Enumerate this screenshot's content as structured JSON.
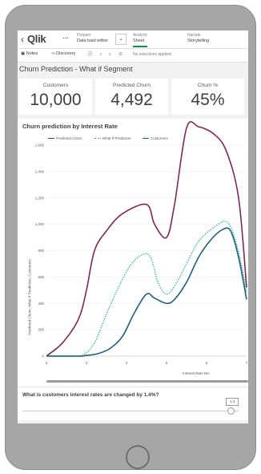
{
  "app": {
    "back_icon": "chevron-left-icon",
    "logo_text": "Qlik",
    "more_label": "···",
    "nav": [
      {
        "top": "Prepare",
        "bottom": "Data load editor"
      },
      {
        "top": "Analyze",
        "bottom": "Sheet"
      },
      {
        "top": "Narrate",
        "bottom": "Storytelling"
      }
    ],
    "accent": "#009845"
  },
  "toolbar": {
    "notes_label": "Notes",
    "discovery_label": "Discovery",
    "selections_label": "No selections applied"
  },
  "sheet_title": "Churn Prediction - What if Segment",
  "kpis": [
    {
      "label": "Customers",
      "value": "10,000"
    },
    {
      "label": "Predicted Churn",
      "value": "4,492"
    },
    {
      "label": "Churn %",
      "value": "45%"
    }
  ],
  "chart_panel_title": "Churn prediction by Interest Rate",
  "chart_data": {
    "type": "line",
    "title": "Churn prediction by Interest Rate",
    "xlabel": "Interest Rate Bin",
    "ylabel": "Predicted Churn, What If Prediction, Customers",
    "xlim": [
      2,
      7
    ],
    "ylim": [
      0,
      1600
    ],
    "xticks": [
      "2",
      "3",
      "4",
      "5",
      "6",
      "7"
    ],
    "yticks": [
      "0",
      "200",
      "400",
      "600",
      "800",
      "1,000",
      "1,200",
      "1,400",
      "1,600"
    ],
    "legend_position": "top",
    "grid": true,
    "series": [
      {
        "name": "Predicted Churn",
        "color": "#7a2a5a",
        "style": "solid",
        "points": [
          [
            2.0,
            0
          ],
          [
            2.4,
            100
          ],
          [
            2.8,
            280
          ],
          [
            3.0,
            500
          ],
          [
            3.2,
            800
          ],
          [
            3.5,
            950
          ],
          [
            3.9,
            1080
          ],
          [
            4.5,
            1150
          ],
          [
            4.7,
            1000
          ],
          [
            5.0,
            900
          ],
          [
            5.2,
            1150
          ],
          [
            5.5,
            1730
          ],
          [
            5.8,
            1740
          ],
          [
            6.2,
            1680
          ],
          [
            6.5,
            1550
          ],
          [
            6.8,
            1200
          ],
          [
            7.0,
            520
          ]
        ]
      },
      {
        "name": "What If Prediction",
        "color": "#3bb3a6",
        "style": "dotted",
        "points": [
          [
            2.0,
            0
          ],
          [
            2.6,
            0
          ],
          [
            2.9,
            5
          ],
          [
            3.2,
            100
          ],
          [
            3.5,
            320
          ],
          [
            3.8,
            520
          ],
          [
            4.1,
            690
          ],
          [
            4.4,
            770
          ],
          [
            4.6,
            750
          ],
          [
            4.8,
            550
          ],
          [
            5.0,
            470
          ],
          [
            5.2,
            530
          ],
          [
            5.5,
            700
          ],
          [
            5.8,
            870
          ],
          [
            6.2,
            980
          ],
          [
            6.5,
            1020
          ],
          [
            6.7,
            900
          ],
          [
            6.9,
            650
          ],
          [
            7.0,
            480
          ]
        ]
      },
      {
        "name": "Customers",
        "color": "#1f5f7a",
        "style": "solid",
        "points": [
          [
            2.0,
            0
          ],
          [
            2.8,
            0
          ],
          [
            3.0,
            5
          ],
          [
            3.3,
            20
          ],
          [
            3.6,
            60
          ],
          [
            3.9,
            150
          ],
          [
            4.2,
            330
          ],
          [
            4.5,
            470
          ],
          [
            4.7,
            440
          ],
          [
            5.0,
            400
          ],
          [
            5.2,
            430
          ],
          [
            5.5,
            560
          ],
          [
            5.8,
            750
          ],
          [
            6.1,
            880
          ],
          [
            6.4,
            960
          ],
          [
            6.6,
            950
          ],
          [
            6.8,
            750
          ],
          [
            7.0,
            430
          ]
        ]
      }
    ]
  },
  "slider": {
    "question": "What is customers interest rates are changed by 1.4%?",
    "value": "1.4"
  }
}
